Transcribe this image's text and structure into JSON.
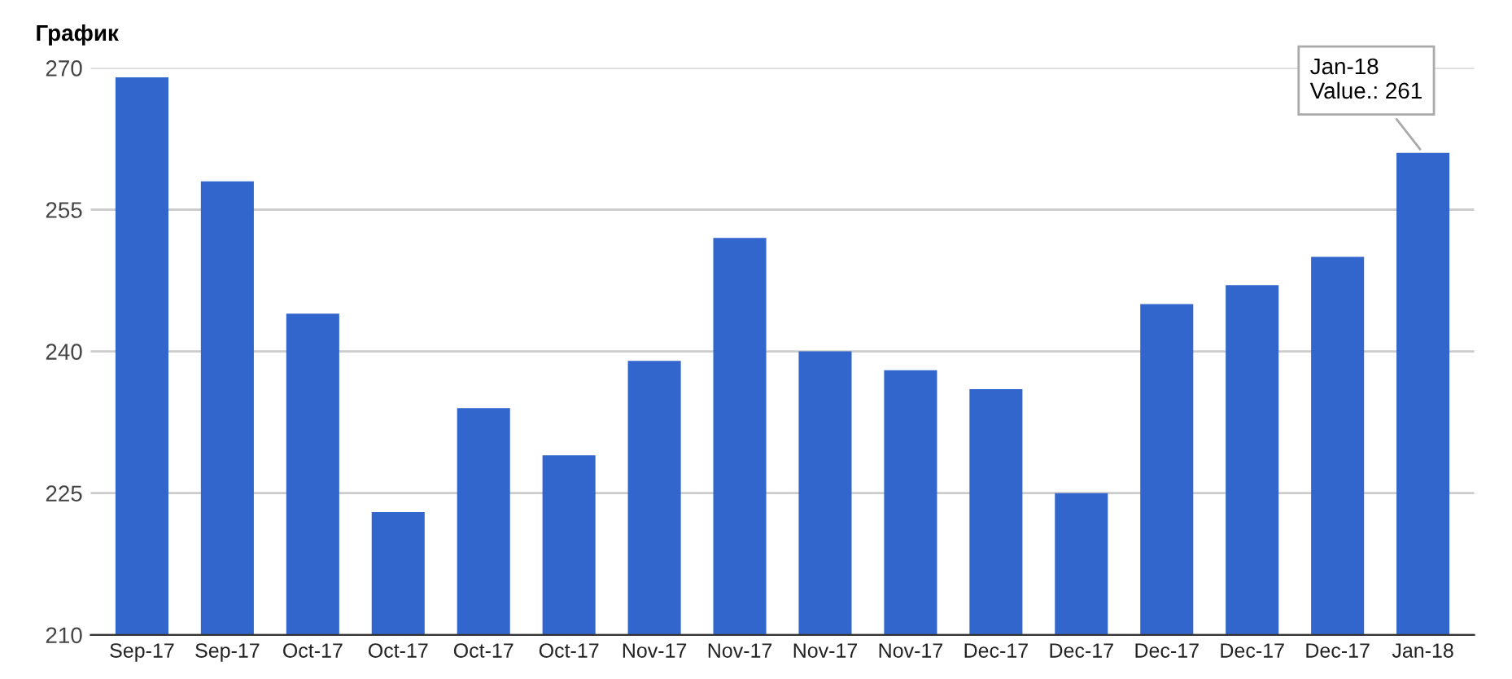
{
  "chart_data": {
    "type": "bar",
    "title": "График",
    "categories": [
      "Sep-17",
      "Sep-17",
      "Oct-17",
      "Oct-17",
      "Oct-17",
      "Oct-17",
      "Nov-17",
      "Nov-17",
      "Nov-17",
      "Nov-17",
      "Dec-17",
      "Dec-17",
      "Dec-17",
      "Dec-17",
      "Dec-17",
      "Jan-18"
    ],
    "values": [
      269,
      258,
      244,
      223,
      234,
      229,
      239,
      252,
      240,
      238,
      236,
      225,
      245,
      247,
      250,
      261
    ],
    "color": "#3366cc",
    "ylim": [
      210,
      270
    ],
    "yticks": [
      210,
      225,
      240,
      255,
      270
    ],
    "grid": "y",
    "annotations": [
      {
        "text": "Jan-18\nValue.: 261",
        "x": "Jan-18",
        "y": 261
      }
    ]
  }
}
